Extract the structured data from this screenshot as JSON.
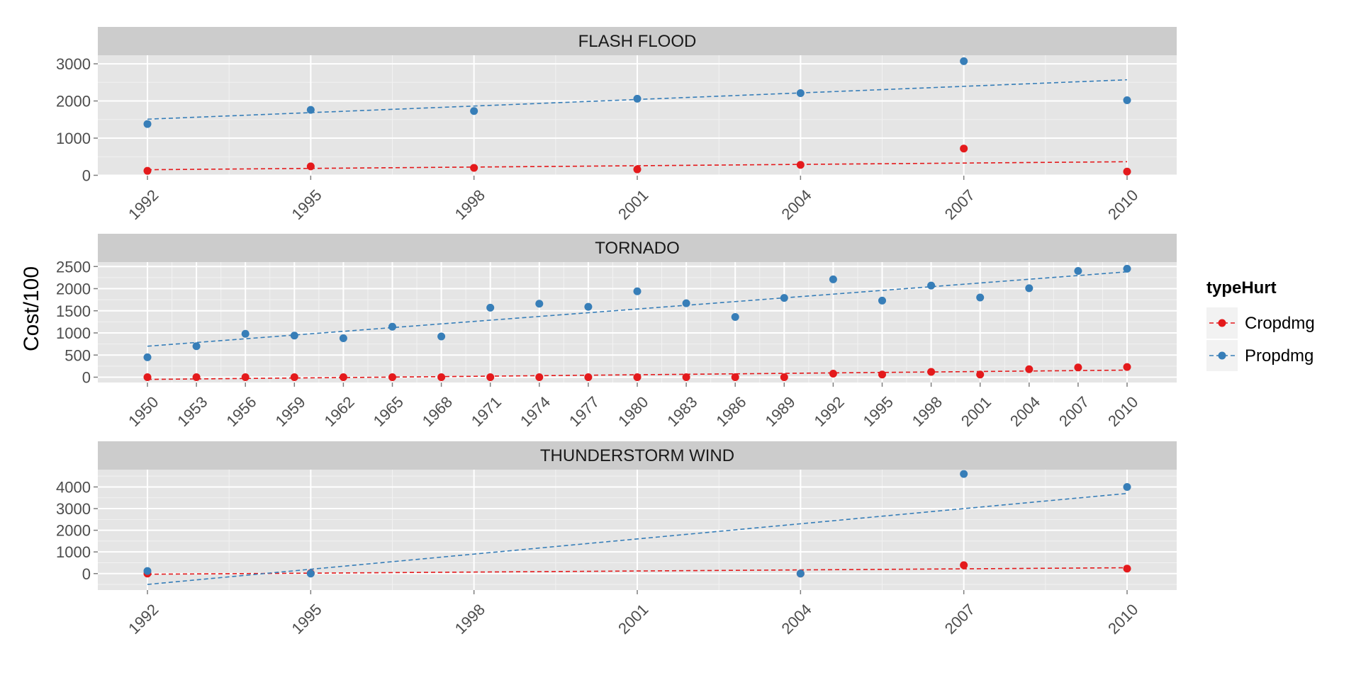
{
  "chart_data": {
    "type": "scatter",
    "ylabel": "Cost/100",
    "legend": {
      "title": "typeHurt",
      "position": "right",
      "entries": [
        {
          "name": "Cropdmg",
          "color": "#e41a1c"
        },
        {
          "name": "Propdmg",
          "color": "#377eb8"
        }
      ]
    },
    "grid": true,
    "panels": [
      {
        "title": "FLASH FLOOD",
        "x": [
          1992,
          1995,
          1998,
          2001,
          2004,
          2007,
          2010
        ],
        "ylim": [
          -10,
          3230
        ],
        "yticks": [
          0,
          1000,
          2000,
          3000
        ],
        "series": [
          {
            "name": "Cropdmg",
            "values": [
              120,
              240,
              200,
              160,
              280,
              720,
              100
            ],
            "trend": [
              150,
              365
            ]
          },
          {
            "name": "Propdmg",
            "values": [
              1380,
              1760,
              1730,
              2060,
              2210,
              3070,
              2020
            ],
            "trend": [
              1510,
              2570
            ]
          }
        ]
      },
      {
        "title": "TORNADO",
        "x": [
          1950,
          1953,
          1956,
          1959,
          1962,
          1965,
          1968,
          1971,
          1974,
          1977,
          1980,
          1983,
          1986,
          1989,
          1992,
          1995,
          1998,
          2001,
          2004,
          2007,
          2010
        ],
        "ylim": [
          -120,
          2600
        ],
        "yticks": [
          0,
          500,
          1000,
          1500,
          2000,
          2500
        ],
        "series": [
          {
            "name": "Cropdmg",
            "values": [
              0,
              0,
              0,
              0,
              0,
              0,
              0,
              0,
              0,
              0,
              0,
              0,
              0,
              0,
              80,
              60,
              120,
              60,
              180,
              220,
              230
            ],
            "trend": [
              -50,
              160
            ]
          },
          {
            "name": "Propdmg",
            "values": [
              450,
              700,
              980,
              940,
              880,
              1140,
              920,
              1570,
              1660,
              1590,
              1940,
              1670,
              1360,
              1790,
              2210,
              1730,
              2070,
              1800,
              2010,
              2400,
              2450
            ],
            "trend": [
              700,
              2380
            ]
          }
        ]
      },
      {
        "title": "THUNDERSTORM WIND",
        "x": [
          1992,
          1995,
          1998,
          2001,
          2004,
          2007,
          2010
        ],
        "ylim": [
          -760,
          4800
        ],
        "yticks": [
          0,
          1000,
          2000,
          3000,
          4000
        ],
        "series": [
          {
            "name": "Cropdmg",
            "values": [
              0,
              20,
              null,
              null,
              0,
              390,
              230
            ],
            "trend": [
              -30,
              270
            ]
          },
          {
            "name": "Propdmg",
            "values": [
              120,
              0,
              null,
              null,
              0,
              4600,
              4000
            ],
            "trend": [
              -500,
              3700
            ]
          }
        ]
      }
    ]
  }
}
